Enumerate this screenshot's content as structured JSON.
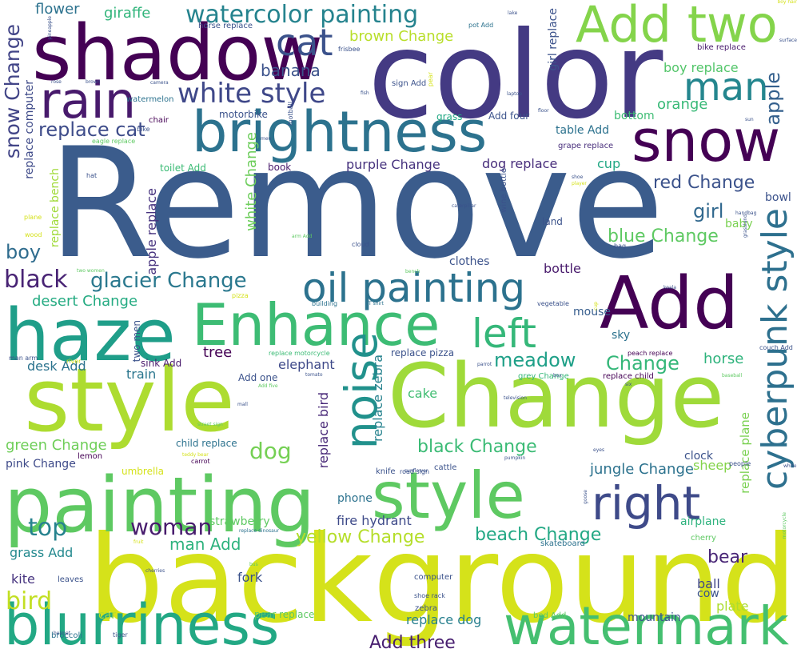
{
  "palette": [
    "#440154",
    "#472d7b",
    "#3b528b",
    "#2c728e",
    "#21918c",
    "#28ae80",
    "#5ec962",
    "#addc30",
    "#fde725"
  ],
  "words": [
    {
      "t": "Remove",
      "c": "#3b5c8c"
    },
    {
      "t": "color",
      "c": "#443a83"
    },
    {
      "t": "background",
      "c": "#d5e21a"
    },
    {
      "t": "style",
      "c": "#addc30"
    },
    {
      "t": "Change",
      "c": "#9fda3a"
    },
    {
      "t": "shadow",
      "c": "#440154"
    },
    {
      "t": "Add",
      "c": "#440154"
    },
    {
      "t": "painting",
      "c": "#5ec962"
    },
    {
      "t": "style",
      "c": "#5ec962"
    },
    {
      "t": "haze",
      "c": "#1f9e89"
    },
    {
      "t": "Enhance",
      "c": "#3dbc74"
    },
    {
      "t": "brightness",
      "c": "#2c728e"
    },
    {
      "t": "snow",
      "c": "#440154"
    },
    {
      "t": "Add two",
      "c": "#84d44b"
    },
    {
      "t": "rain",
      "c": "#481a6c"
    },
    {
      "t": "cyberpunk style",
      "c": "#2d708e"
    },
    {
      "t": "blurriness",
      "c": "#22a884"
    },
    {
      "t": "watermark",
      "c": "#44bf70"
    },
    {
      "t": "oil painting",
      "c": "#2c728e"
    },
    {
      "t": "noise",
      "c": "#21918c"
    },
    {
      "t": "right",
      "c": "#3e4a89"
    },
    {
      "t": "left",
      "c": "#35b779"
    },
    {
      "t": "man",
      "c": "#24868e"
    },
    {
      "t": "cat",
      "c": "#3b528b"
    },
    {
      "t": "watercolor painting",
      "c": "#25838e"
    },
    {
      "t": "white style",
      "c": "#3f4889"
    },
    {
      "t": "black",
      "c": "#482374"
    },
    {
      "t": "glacier Change",
      "c": "#2a788e"
    },
    {
      "t": "woman",
      "c": "#481c6e"
    },
    {
      "t": "top",
      "c": "#26828e"
    },
    {
      "t": "bird",
      "c": "#c2df23"
    },
    {
      "t": "dog",
      "c": "#75d054"
    },
    {
      "t": "boy",
      "c": "#2f6c8e"
    },
    {
      "t": "snow Change",
      "c": "#414487"
    },
    {
      "t": "replace cat",
      "c": "#3e4c8a"
    },
    {
      "t": "banana",
      "c": "#3b528b"
    },
    {
      "t": "apple",
      "c": "#34608d"
    },
    {
      "t": "girl",
      "c": "#31688e"
    },
    {
      "t": "red Change",
      "c": "#3b528b"
    },
    {
      "t": "blue Change",
      "c": "#5ec962"
    },
    {
      "t": "meadow",
      "c": "#1fa088"
    },
    {
      "t": "Change",
      "c": "#35b779"
    },
    {
      "t": "horse",
      "c": "#2eb37c"
    },
    {
      "t": "man Add",
      "c": "#2db27d"
    },
    {
      "t": "yellow Change",
      "c": "#b5de2b"
    },
    {
      "t": "beach Change",
      "c": "#22a884"
    },
    {
      "t": "black Change",
      "c": "#3bbb75"
    },
    {
      "t": "green Change",
      "c": "#6ece58"
    },
    {
      "t": "desert Change",
      "c": "#25ab82"
    },
    {
      "t": "Add three",
      "c": "#481f70"
    },
    {
      "t": "bear",
      "c": "#482576"
    },
    {
      "t": "brown Change",
      "c": "#b8de29"
    },
    {
      "t": "orange",
      "c": "#38b977"
    },
    {
      "t": "boy replace",
      "c": "#52c569"
    },
    {
      "t": "replace dog",
      "c": "#277f8e"
    },
    {
      "t": "replace bird",
      "c": "#482878"
    },
    {
      "t": "replace zebra",
      "c": "#26828e"
    },
    {
      "t": "replace plane",
      "c": "#7ad151"
    },
    {
      "t": "apple replace",
      "c": "#46327e"
    },
    {
      "t": "white Change",
      "c": "#6ccd5a"
    },
    {
      "t": "replace computer",
      "c": "#3e4a89"
    },
    {
      "t": "replace bench",
      "c": "#a0da39"
    },
    {
      "t": "girl replace",
      "c": "#3b528b"
    },
    {
      "t": "flower",
      "c": "#2c728e"
    },
    {
      "t": "giraffe",
      "c": "#31b57b"
    },
    {
      "t": "cup",
      "c": "#22a884"
    },
    {
      "t": "dog replace",
      "c": "#472d7b"
    },
    {
      "t": "purple Change",
      "c": "#46327e"
    },
    {
      "t": "bottle",
      "c": "#481a6c"
    },
    {
      "t": "clothes",
      "c": "#3b528b"
    },
    {
      "t": "mouse",
      "c": "#365d8d"
    },
    {
      "t": "sky",
      "c": "#2c728e"
    },
    {
      "t": "tree",
      "c": "#440154"
    },
    {
      "t": "train",
      "c": "#2a768e"
    },
    {
      "t": "desk Add",
      "c": "#2c738e"
    },
    {
      "t": "elephant",
      "c": "#3e4989"
    },
    {
      "t": "cake",
      "c": "#40bd72"
    },
    {
      "t": "jungle Change",
      "c": "#2c728e"
    },
    {
      "t": "sheep",
      "c": "#84d44b"
    },
    {
      "t": "clock",
      "c": "#3b528b"
    },
    {
      "t": "airplane",
      "c": "#2db27d"
    },
    {
      "t": "pink Change",
      "c": "#3e4a89"
    },
    {
      "t": "grass Add",
      "c": "#23898e"
    },
    {
      "t": "kite",
      "c": "#46337f"
    },
    {
      "t": "fork",
      "c": "#3b528b"
    },
    {
      "t": "ball",
      "c": "#404688"
    },
    {
      "t": "cow",
      "c": "#3b528b"
    },
    {
      "t": "plate",
      "c": "#addc30"
    },
    {
      "t": "car",
      "c": "#b5de2b"
    },
    {
      "t": "mountain",
      "c": "#3b528b"
    },
    {
      "t": "strawberry",
      "c": "#5ec962"
    },
    {
      "t": "fire hydrant",
      "c": "#3e4a89"
    },
    {
      "t": "phone",
      "c": "#2c728e"
    },
    {
      "t": "baby",
      "c": "#7ad151"
    },
    {
      "t": "bowl",
      "c": "#3b528b"
    },
    {
      "t": "land",
      "c": "#3b528b"
    },
    {
      "t": "toilet Add",
      "c": "#3bbb75"
    },
    {
      "t": "book",
      "c": "#481a6c"
    },
    {
      "t": "chair",
      "c": "#440154"
    },
    {
      "t": "motorbike",
      "c": "#3b528b"
    },
    {
      "t": "watermelon",
      "c": "#2c728e"
    },
    {
      "t": "table Add",
      "c": "#2c728e"
    },
    {
      "t": "grape replace",
      "c": "#472d7b"
    },
    {
      "t": "bottom",
      "c": "#3dbc74"
    },
    {
      "t": "grass",
      "c": "#22a884"
    },
    {
      "t": "Add four",
      "c": "#3b528b"
    },
    {
      "t": "bike replace",
      "c": "#481a6c"
    },
    {
      "t": "horse replace",
      "c": "#3b528b"
    },
    {
      "t": "sign Add",
      "c": "#3b528b"
    },
    {
      "t": "pot Add",
      "c": "#2c728e"
    },
    {
      "t": "frisbee",
      "c": "#3b528b"
    },
    {
      "t": "child replace",
      "c": "#2c728e"
    },
    {
      "t": "lemon",
      "c": "#440154"
    },
    {
      "t": "umbrella",
      "c": "#d5e21a"
    },
    {
      "t": "replace pizza",
      "c": "#3b528b"
    },
    {
      "t": "Add one",
      "c": "#3b528b"
    },
    {
      "t": "grey Change",
      "c": "#35b779"
    },
    {
      "t": "replace child",
      "c": "#440154"
    },
    {
      "t": "sink Add",
      "c": "#481a6c"
    },
    {
      "t": "two men",
      "c": "#3b528b"
    },
    {
      "t": "replace motorcycle",
      "c": "#3bbb75"
    },
    {
      "t": "couch Add",
      "c": "#3b528b"
    },
    {
      "t": "peach replace",
      "c": "#440154"
    },
    {
      "t": "knife",
      "c": "#3b528b"
    },
    {
      "t": "cattle",
      "c": "#3b528b"
    },
    {
      "t": "road sign",
      "c": "#3b528b"
    },
    {
      "t": "skateboard",
      "c": "#2c728e"
    },
    {
      "t": "leaves",
      "c": "#3b528b"
    },
    {
      "t": "zebra",
      "c": "#3b528b"
    },
    {
      "t": "shoe rack",
      "c": "#3b528b"
    },
    {
      "t": "computer",
      "c": "#3b528b"
    },
    {
      "t": "pear replace",
      "c": "#5ec962"
    },
    {
      "t": "bed Add",
      "c": "#5ec962"
    },
    {
      "t": "broccoli",
      "c": "#2c728e"
    },
    {
      "t": "tiger",
      "c": "#3b528b"
    },
    {
      "t": "carrot",
      "c": "#440154"
    },
    {
      "t": "cherry",
      "c": "#5ec962"
    },
    {
      "t": "people",
      "c": "#3b528b"
    },
    {
      "t": "vegetable",
      "c": "#3b528b"
    },
    {
      "t": "building",
      "c": "#2c728e"
    },
    {
      "t": "pizza",
      "c": "#d5e21a"
    },
    {
      "t": "river",
      "c": "#d5e21a"
    },
    {
      "t": "man arm",
      "c": "#3b528b"
    },
    {
      "t": "wood",
      "c": "#d5e21a"
    },
    {
      "t": "plane",
      "c": "#d5e21a"
    },
    {
      "t": "hat",
      "c": "#3b528b"
    },
    {
      "t": "eagle replace",
      "c": "#5ec962"
    },
    {
      "t": "bike",
      "c": "#3b528b"
    },
    {
      "t": "pear",
      "c": "#d5e21a"
    },
    {
      "t": "football",
      "c": "#3b528b"
    },
    {
      "t": "wine bottle",
      "c": "#3b528b"
    },
    {
      "t": "caterpillar",
      "c": "#3b528b"
    },
    {
      "t": "bag",
      "c": "#3b528b"
    },
    {
      "t": "cloud",
      "c": "#3b528b"
    },
    {
      "t": "bench",
      "c": "#5ec962"
    },
    {
      "t": "grassland",
      "c": "#3b528b"
    },
    {
      "t": "handbag",
      "c": "#3b528b"
    },
    {
      "t": "koala",
      "c": "#3b528b"
    },
    {
      "t": "T shirt",
      "c": "#2c728e"
    },
    {
      "t": "tomato",
      "c": "#3b528b"
    },
    {
      "t": "Add five",
      "c": "#5ec962"
    },
    {
      "t": "mall",
      "c": "#3b528b"
    },
    {
      "t": "parrot",
      "c": "#3b528b"
    },
    {
      "t": "television",
      "c": "#3b528b"
    },
    {
      "t": "box",
      "c": "#3b528b"
    },
    {
      "t": "six",
      "c": "#3b528b"
    },
    {
      "t": "baseball",
      "c": "#5ec962"
    },
    {
      "t": "motorcycle",
      "c": "#5ec962"
    },
    {
      "t": "pumpkin",
      "c": "#3b528b"
    },
    {
      "t": "eyes",
      "c": "#3b528b"
    },
    {
      "t": "street sign",
      "c": "#5ec962"
    },
    {
      "t": "teddy bear",
      "c": "#d5e21a"
    },
    {
      "t": "cherries",
      "c": "#3b528b"
    },
    {
      "t": "bus",
      "c": "#5ec962"
    },
    {
      "t": "fruit",
      "c": "#d5e21a"
    },
    {
      "t": "replace dinosaur",
      "c": "#2c728e"
    },
    {
      "t": "helmet",
      "c": "#3b528b"
    },
    {
      "t": "sunflower",
      "c": "#3b528b"
    },
    {
      "t": "lake",
      "c": "#3b528b"
    },
    {
      "t": "pineapple",
      "c": "#3b528b"
    },
    {
      "t": "rose",
      "c": "#3b528b"
    },
    {
      "t": "brown",
      "c": "#3b528b"
    },
    {
      "t": "camera",
      "c": "#3b528b"
    },
    {
      "t": "shoe",
      "c": "#3b528b"
    },
    {
      "t": "player",
      "c": "#d5e21a"
    },
    {
      "t": "arm Add",
      "c": "#5ec962"
    },
    {
      "t": "two women",
      "c": "#5ec962"
    },
    {
      "t": "laptop",
      "c": "#3b528b"
    },
    {
      "t": "floor",
      "c": "#3b528b"
    },
    {
      "t": "sun",
      "c": "#3b528b"
    },
    {
      "t": "men",
      "c": "#3b528b"
    },
    {
      "t": "cup",
      "c": "#d5e21a"
    },
    {
      "t": "goose",
      "c": "#3b528b"
    },
    {
      "t": "fish",
      "c": "#3b528b"
    },
    {
      "t": "white",
      "c": "#3b528b"
    },
    {
      "t": "surface",
      "c": "#3b528b"
    },
    {
      "t": "boy hair",
      "c": "#d5e21a"
    },
    {
      "t": "ship",
      "c": "#3b528b"
    },
    {
      "t": "sea",
      "c": "#d5e21a"
    },
    {
      "t": "dash",
      "c": "#d5e21a"
    },
    {
      "t": "key",
      "c": "#d5e21a"
    },
    {
      "t": "top",
      "c": "#3b528b"
    }
  ]
}
